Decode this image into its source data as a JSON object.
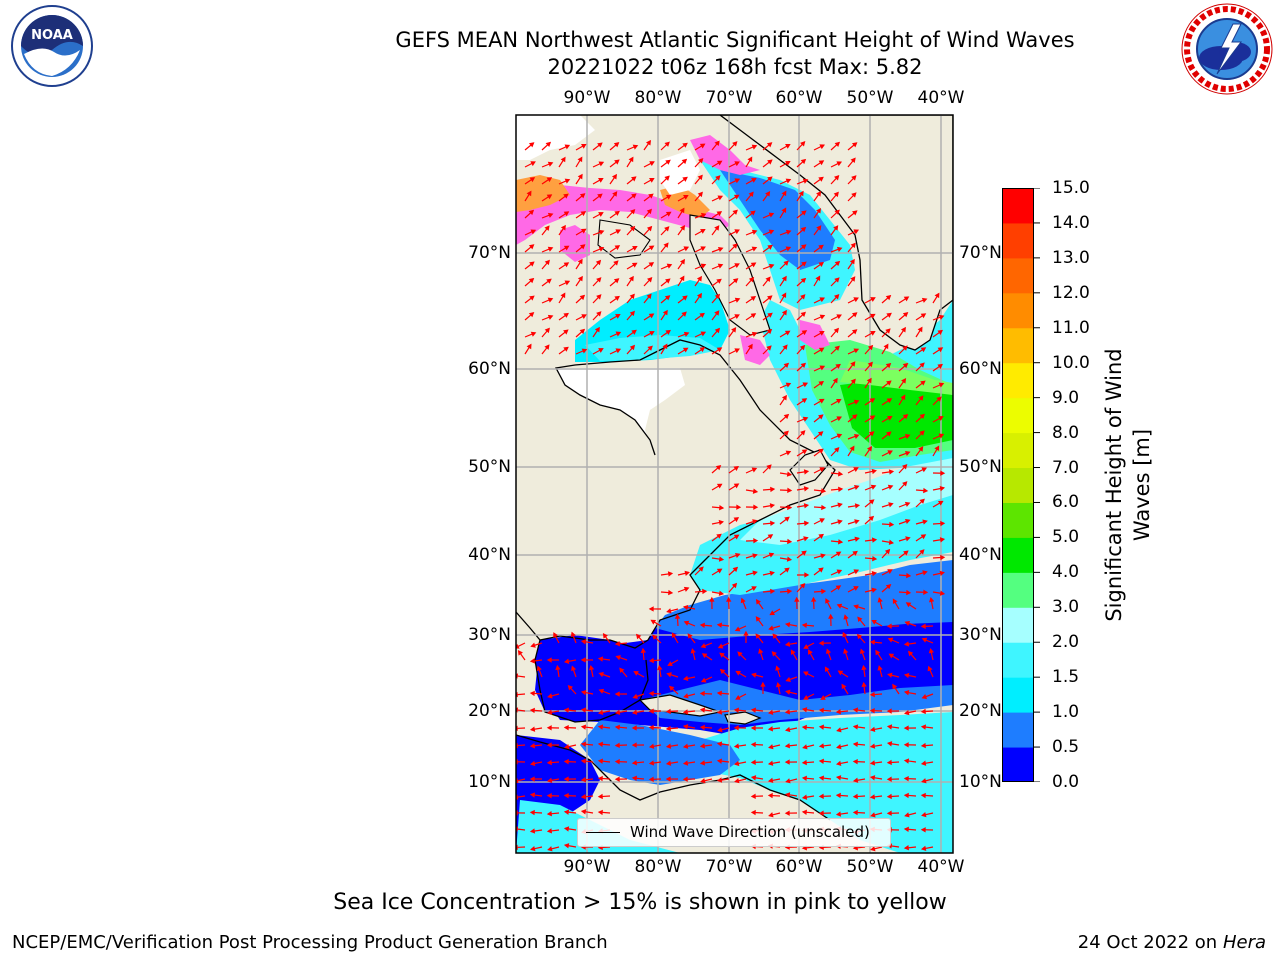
{
  "title": {
    "line1": "GEFS MEAN Northwest Atlantic Significant Height of Wind Waves",
    "line2": "20221022 t06z 168h fcst   Max: 5.82"
  },
  "logos": {
    "noaa": "NOAA",
    "noaa_ring": "NATIONAL OCEANIC AND ATMOSPHERIC ADMINISTRATION · U.S. DEPARTMENT OF COMMERCE",
    "nws_ring": "NATIONAL WEATHER SERVICE"
  },
  "map": {
    "lon_labels": [
      "90°W",
      "80°W",
      "70°W",
      "60°W",
      "50°W",
      "40°W"
    ],
    "lat_labels": [
      "70°N",
      "60°N",
      "50°N",
      "40°N",
      "30°N",
      "20°N",
      "10°N"
    ],
    "legend": "Wind Wave Direction (unscaled)",
    "colors": {
      "land": "#efecdc",
      "ice_pink": "#ff69e6",
      "ice_orange": "#ffa040",
      "arrow": "#ff0000"
    }
  },
  "colorbar": {
    "label": "Significant Height of Wind Waves [m]",
    "ticks": [
      "0.0",
      "0.5",
      "1.0",
      "1.5",
      "2.0",
      "3.0",
      "4.0",
      "5.0",
      "6.0",
      "7.0",
      "8.0",
      "9.0",
      "10.0",
      "11.0",
      "12.0",
      "13.0",
      "14.0",
      "15.0"
    ],
    "colors": [
      "#0000ff",
      "#1e7dff",
      "#00eeff",
      "#3ff5ff",
      "#a6ffff",
      "#54ff80",
      "#00e800",
      "#5de500",
      "#b7e800",
      "#d8f000",
      "#ecfd00",
      "#ffeb00",
      "#ffbc00",
      "#ff8c00",
      "#ff6600",
      "#ff3f00",
      "#ff0000"
    ]
  },
  "caption": "Sea Ice Concentration > 15% is shown in pink to yellow",
  "footer": {
    "left": "NCEP/EMC/Verification Post Processing Product Generation Branch",
    "date": "24 Oct 2022 on",
    "machine": "Hera"
  }
}
